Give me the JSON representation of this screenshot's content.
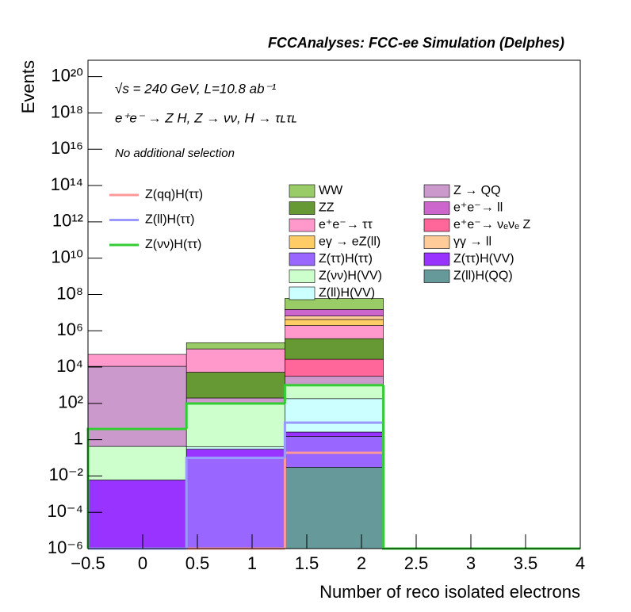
{
  "chart_data": {
    "type": "stacked_histogram",
    "title": "FCCAnalyses: FCC-ee Simulation (Delphes)",
    "annotations": [
      "√s = 240 GeV, L=10.8 ab⁻¹",
      "e⁺e⁻ → Z H, Z → νν, H → τʟτʟ",
      "No additional selection"
    ],
    "xlabel": "Number of reco isolated electrons",
    "ylabel": "Events",
    "log_y": true,
    "bins": [
      -0.5,
      0.4,
      1.3,
      2.2,
      3.1,
      4.0
    ],
    "xlim": [
      -0.5,
      4
    ],
    "xticks": [
      {
        "value": -0.5,
        "label": "−0.5"
      },
      0,
      0.5,
      1,
      1.5,
      2,
      2.5,
      3,
      3.5,
      4
    ],
    "ylim": [
      1e-06,
      8e+20
    ],
    "yticks": [
      {
        "value": 1e-06,
        "label": "10⁻⁶"
      },
      {
        "value": 0.0001,
        "label": "10⁻⁴"
      },
      {
        "value": 0.01,
        "label": "10⁻²"
      },
      1,
      {
        "value": 100,
        "label": "10²"
      },
      {
        "value": 10000,
        "label": "10⁴"
      },
      {
        "value": 1000000.0,
        "label": "10⁶"
      },
      {
        "value": 100000000.0,
        "label": "10⁸"
      },
      {
        "value": 10000000000.0,
        "label": "10¹⁰"
      },
      {
        "value": 1000000000000.0,
        "label": "10¹²"
      },
      {
        "value": 100000000000000.0,
        "label": "10¹⁴"
      },
      {
        "value": 1e+16,
        "label": "10¹⁶"
      },
      {
        "value": 1e+18,
        "label": "10¹⁸"
      },
      {
        "value": 1e+20,
        "label": "10²⁰"
      }
    ],
    "series": [
      {
        "name": "Z(ll)H(QQ)",
        "color": "#669999",
        "values": [
          0,
          0,
          0.03,
          0,
          0
        ]
      },
      {
        "name": "Z(ττ)H(ττ)",
        "color": "#9966ff",
        "values": [
          0,
          0.1,
          1.5,
          0,
          0
        ]
      },
      {
        "name": "Z(ττ)H(VV)",
        "color": "#9933ff",
        "values": [
          0.006,
          0.2,
          1.1,
          0,
          0
        ]
      },
      {
        "name": "Z(ll)H(VV)",
        "color": "#ccffff",
        "values": [
          0,
          0.1,
          180,
          0,
          0
        ]
      },
      {
        "name": "Z(νν)H(VV)",
        "color": "#ccffcc",
        "values": [
          0.42,
          98,
          900,
          0,
          0
        ]
      },
      {
        "name": "Z → QQ",
        "color": "#cc99cc",
        "values": [
          11000,
          100,
          2000,
          0,
          0
        ]
      },
      {
        "name": "e⁺e⁻→ νₑνₑ Z",
        "color": "#ff6699",
        "values": [
          0,
          0,
          24000,
          0,
          0
        ]
      },
      {
        "name": "ZZ",
        "color": "#669933",
        "values": [
          0,
          5000,
          340000,
          0,
          0
        ]
      },
      {
        "name": "e⁺e⁻→ ττ",
        "color": "#ff99cc",
        "values": [
          39000,
          95000,
          1600000,
          0,
          0
        ]
      },
      {
        "name": "eγ → eZ(ll)",
        "color": "#ffcc66",
        "values": [
          0,
          0,
          2200000,
          0,
          0
        ]
      },
      {
        "name": "γγ → ll",
        "color": "#ffcc99",
        "values": [
          0,
          0,
          2300000,
          0,
          0
        ]
      },
      {
        "name": "e⁺e⁻→ ll",
        "color": "#cc66cc",
        "values": [
          0,
          0,
          8500000,
          0,
          0
        ]
      },
      {
        "name": "WW",
        "color": "#99cc66",
        "values": [
          0,
          120000,
          45000000,
          0,
          0
        ]
      }
    ],
    "signals": [
      {
        "name": "Z(qq)H(ττ)",
        "color": "#ff9999",
        "values": [
          0,
          0,
          0.19,
          0,
          0
        ]
      },
      {
        "name": "Z(ll)H(ττ)",
        "color": "#9999ff",
        "values": [
          0,
          0.1,
          8.7,
          0,
          0
        ]
      },
      {
        "name": "Z(νν)H(ττ)",
        "color": "#33cc33",
        "values": [
          3.9,
          98,
          1000,
          0,
          0
        ]
      }
    ]
  }
}
